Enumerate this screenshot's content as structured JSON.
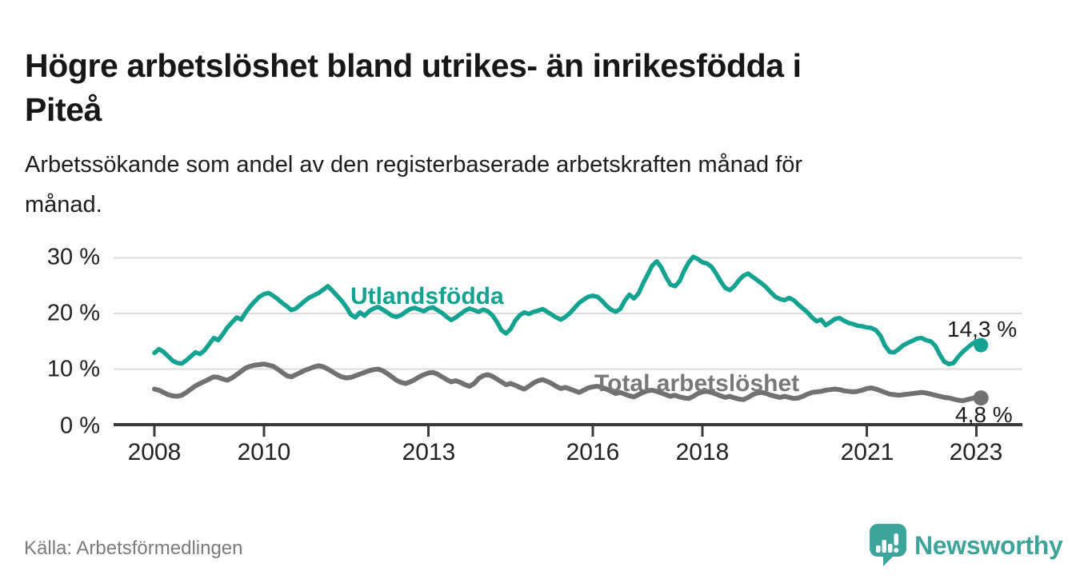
{
  "title": {
    "line1": "Högre arbetslöshet bland utrikes- än inrikesfödda i",
    "line2": "Piteå",
    "full": "Högre arbetslöshet bland utrikes- än inrikesfödda i Piteå"
  },
  "subtitle": {
    "line1": "Arbetssökande som andel av den registerbaserade arbetskraften månad för",
    "line2": "månad.",
    "full": "Arbetssökande som andel av den registerbaserade arbetskraften månad för månad."
  },
  "source": "Källa: Arbetsförmedlingen",
  "logo": {
    "text": "Newsworthy",
    "icon": "bar-chart-speech-bubble-icon",
    "color": "#3da49c"
  },
  "colors": {
    "teal_line": "#14a291",
    "gray_line": "#717171",
    "gray_label": "#787878",
    "gridline": "#dcdcdc",
    "axis": "#3a3a3a",
    "text_dark": "#222222"
  },
  "chart_data": {
    "type": "line",
    "title": "Högre arbetslöshet bland utrikes- än inrikesfödda i Piteå",
    "xlabel": "",
    "ylabel": "",
    "x_unit": "month",
    "x_start": "2008-01",
    "x_end": "2023-02",
    "ylim": [
      0,
      31
    ],
    "grid": true,
    "legend_position": "inline-labels",
    "y_tick_values": [
      30,
      20,
      10,
      0
    ],
    "y_tick_labels": [
      "30 %",
      "20 %",
      "10 %",
      "0 %"
    ],
    "x_tick_years": [
      2008,
      2010,
      2013,
      2016,
      2018,
      2021,
      2023
    ],
    "x_tick_labels": [
      "2008",
      "2010",
      "2013",
      "2016",
      "2018",
      "2021",
      "2023"
    ],
    "series": [
      {
        "name": "Utlandsfödda",
        "color": "#14a291",
        "label_color": "#14a291",
        "end_label": "14,3 %",
        "end_value": 14.3,
        "values": [
          12.9,
          13.6,
          13.1,
          12.3,
          11.5,
          11.1,
          11.0,
          11.6,
          12.3,
          13.0,
          12.7,
          13.4,
          14.5,
          15.6,
          15.2,
          16.3,
          17.5,
          18.4,
          19.3,
          18.9,
          20.2,
          21.3,
          22.2,
          23.0,
          23.5,
          23.7,
          23.2,
          22.6,
          21.9,
          21.3,
          20.6,
          20.9,
          21.6,
          22.3,
          22.9,
          23.3,
          23.7,
          24.3,
          24.9,
          24.1,
          23.2,
          22.3,
          21.2,
          19.8,
          19.3,
          20.2,
          19.6,
          20.4,
          20.9,
          21.2,
          20.7,
          20.2,
          19.6,
          19.4,
          19.7,
          20.3,
          20.8,
          21.0,
          20.7,
          20.4,
          20.9,
          21.1,
          20.6,
          20.1,
          19.4,
          18.8,
          19.3,
          19.9,
          20.5,
          20.9,
          20.6,
          20.3,
          20.7,
          20.4,
          19.7,
          18.5,
          17.0,
          16.4,
          17.2,
          18.7,
          19.7,
          20.2,
          19.9,
          20.3,
          20.5,
          20.8,
          20.3,
          19.8,
          19.3,
          18.9,
          19.4,
          20.1,
          21.0,
          21.9,
          22.5,
          23.0,
          23.2,
          23.0,
          22.3,
          21.4,
          20.7,
          20.3,
          20.8,
          22.3,
          23.4,
          22.7,
          23.6,
          25.4,
          27.0,
          28.6,
          29.4,
          28.3,
          26.6,
          25.2,
          24.9,
          25.8,
          27.7,
          29.2,
          30.2,
          29.8,
          29.2,
          29.0,
          28.4,
          27.2,
          25.8,
          24.6,
          24.2,
          24.9,
          26.0,
          26.8,
          27.2,
          26.6,
          26.0,
          25.4,
          24.7,
          23.8,
          23.0,
          22.6,
          22.4,
          22.8,
          22.4,
          21.6,
          20.9,
          20.2,
          19.3,
          18.6,
          18.9,
          17.9,
          18.4,
          19.0,
          19.2,
          18.7,
          18.3,
          18.1,
          17.8,
          17.7,
          17.5,
          17.4,
          17.0,
          16.0,
          14.2,
          13.1,
          13.0,
          13.6,
          14.3,
          14.7,
          15.1,
          15.5,
          15.6,
          15.2,
          15.0,
          14.2,
          12.6,
          11.3,
          10.9,
          11.1,
          12.2,
          13.1,
          13.8,
          14.5,
          15.0,
          14.3
        ]
      },
      {
        "name": "Total arbetslöshet",
        "color": "#717171",
        "label_color": "#787878",
        "end_label": "4,8 %",
        "end_value": 4.8,
        "values": [
          6.4,
          6.2,
          5.8,
          5.4,
          5.2,
          5.1,
          5.3,
          5.8,
          6.4,
          7.0,
          7.4,
          7.8,
          8.2,
          8.6,
          8.5,
          8.2,
          8.0,
          8.4,
          9.0,
          9.6,
          10.2,
          10.5,
          10.7,
          10.8,
          10.9,
          10.7,
          10.5,
          10.0,
          9.4,
          8.8,
          8.6,
          9.0,
          9.4,
          9.8,
          10.1,
          10.4,
          10.6,
          10.4,
          10.0,
          9.5,
          9.0,
          8.6,
          8.4,
          8.5,
          8.8,
          9.1,
          9.4,
          9.7,
          9.9,
          10.0,
          9.7,
          9.2,
          8.6,
          8.0,
          7.6,
          7.4,
          7.7,
          8.1,
          8.6,
          9.0,
          9.3,
          9.4,
          9.1,
          8.6,
          8.1,
          7.7,
          7.9,
          7.6,
          7.2,
          6.9,
          7.4,
          8.3,
          8.8,
          9.0,
          8.7,
          8.2,
          7.7,
          7.2,
          7.4,
          7.1,
          6.7,
          6.4,
          6.9,
          7.5,
          7.9,
          8.1,
          7.8,
          7.4,
          6.9,
          6.5,
          6.7,
          6.4,
          6.1,
          5.8,
          6.2,
          6.6,
          6.8,
          6.9,
          6.7,
          6.4,
          6.0,
          5.6,
          5.8,
          5.5,
          5.2,
          5.0,
          5.4,
          5.8,
          6.1,
          6.2,
          6.0,
          5.7,
          5.4,
          5.1,
          5.3,
          5.0,
          4.8,
          4.7,
          5.1,
          5.6,
          5.9,
          6.0,
          5.8,
          5.5,
          5.2,
          4.9,
          5.1,
          4.8,
          4.6,
          4.5,
          4.9,
          5.4,
          5.7,
          5.8,
          5.6,
          5.3,
          5.1,
          4.9,
          5.1,
          4.9,
          4.7,
          4.8,
          5.1,
          5.5,
          5.8,
          5.9,
          6.0,
          6.2,
          6.3,
          6.4,
          6.3,
          6.1,
          6.0,
          5.9,
          6.0,
          6.2,
          6.5,
          6.6,
          6.4,
          6.1,
          5.8,
          5.5,
          5.4,
          5.3,
          5.4,
          5.5,
          5.6,
          5.7,
          5.8,
          5.7,
          5.5,
          5.3,
          5.1,
          4.9,
          4.8,
          4.6,
          4.4,
          4.3,
          4.5,
          4.7,
          4.9,
          4.8
        ]
      }
    ]
  }
}
